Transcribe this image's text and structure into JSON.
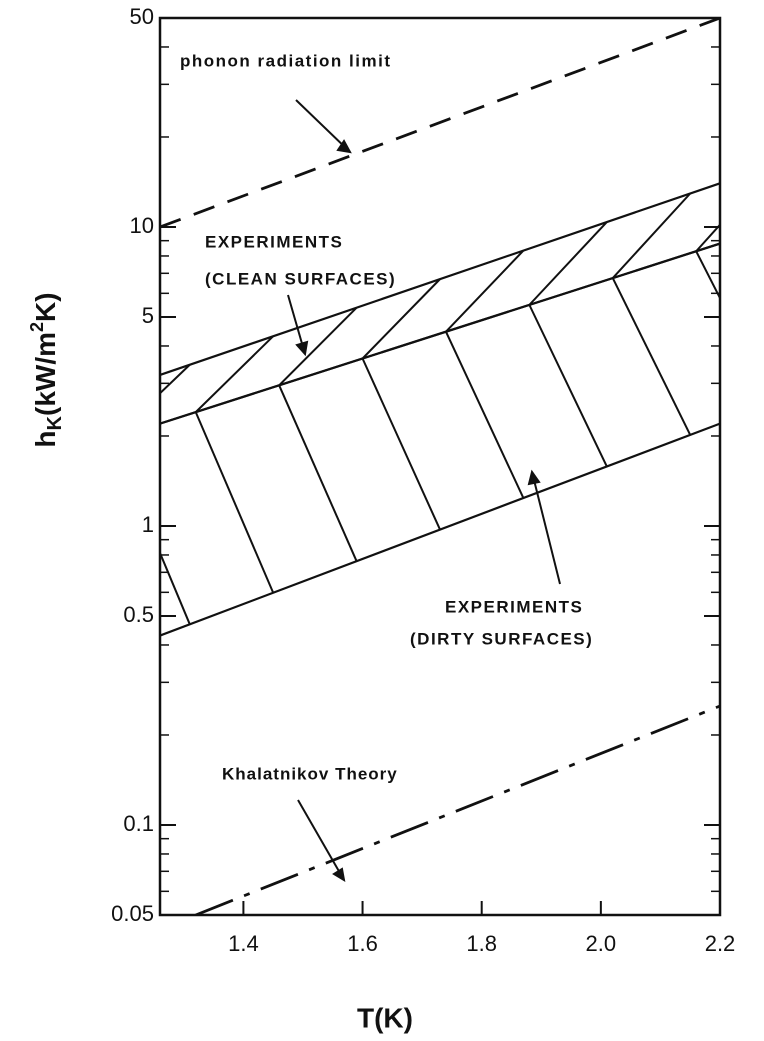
{
  "chart_data": {
    "type": "line",
    "ylabel_parts": [
      "h",
      "K",
      "(kW/m",
      "2",
      "K)"
    ],
    "xlabel": "T(K)",
    "xlim": [
      1.26,
      2.2
    ],
    "ylim": [
      0.05,
      50
    ],
    "log_y": true,
    "xticks": [
      1.4,
      1.6,
      1.8,
      {
        "value": 2,
        "label": "2.0"
      },
      2.2
    ],
    "yticks": [
      0.05,
      0.1,
      0.5,
      1,
      5,
      10,
      50
    ],
    "yminorticks": [
      0.06,
      0.07,
      0.08,
      0.09,
      0.2,
      0.3,
      0.4,
      0.6,
      0.7,
      0.8,
      0.9,
      2,
      3,
      4,
      6,
      7,
      8,
      9,
      20,
      30,
      40
    ],
    "series": [
      {
        "x": [
          1.26,
          2.2
        ],
        "values": [
          10,
          50
        ],
        "style": "dashed",
        "color": "#111"
      },
      {
        "x": [
          1.32,
          2.2
        ],
        "values": [
          0.05,
          0.25
        ],
        "style": "dashdot",
        "color": "#111"
      }
    ],
    "bands": [
      {
        "x": [
          1.26,
          2.2
        ],
        "upper": [
          3.2,
          14
        ],
        "lower": [
          2.2,
          8.8
        ],
        "hatch": "up"
      },
      {
        "x": [
          1.26,
          2.2
        ],
        "upper": [
          2.2,
          8.8
        ],
        "lower": [
          0.43,
          2.2
        ],
        "hatch": "down"
      }
    ],
    "annotations": [
      "phonon radiation limit",
      "EXPERIMENTS",
      "(CLEAN SURFACES)",
      "EXPERIMENTS",
      "(DIRTY SURFACES)",
      "Khalatnikov Theory"
    ]
  }
}
